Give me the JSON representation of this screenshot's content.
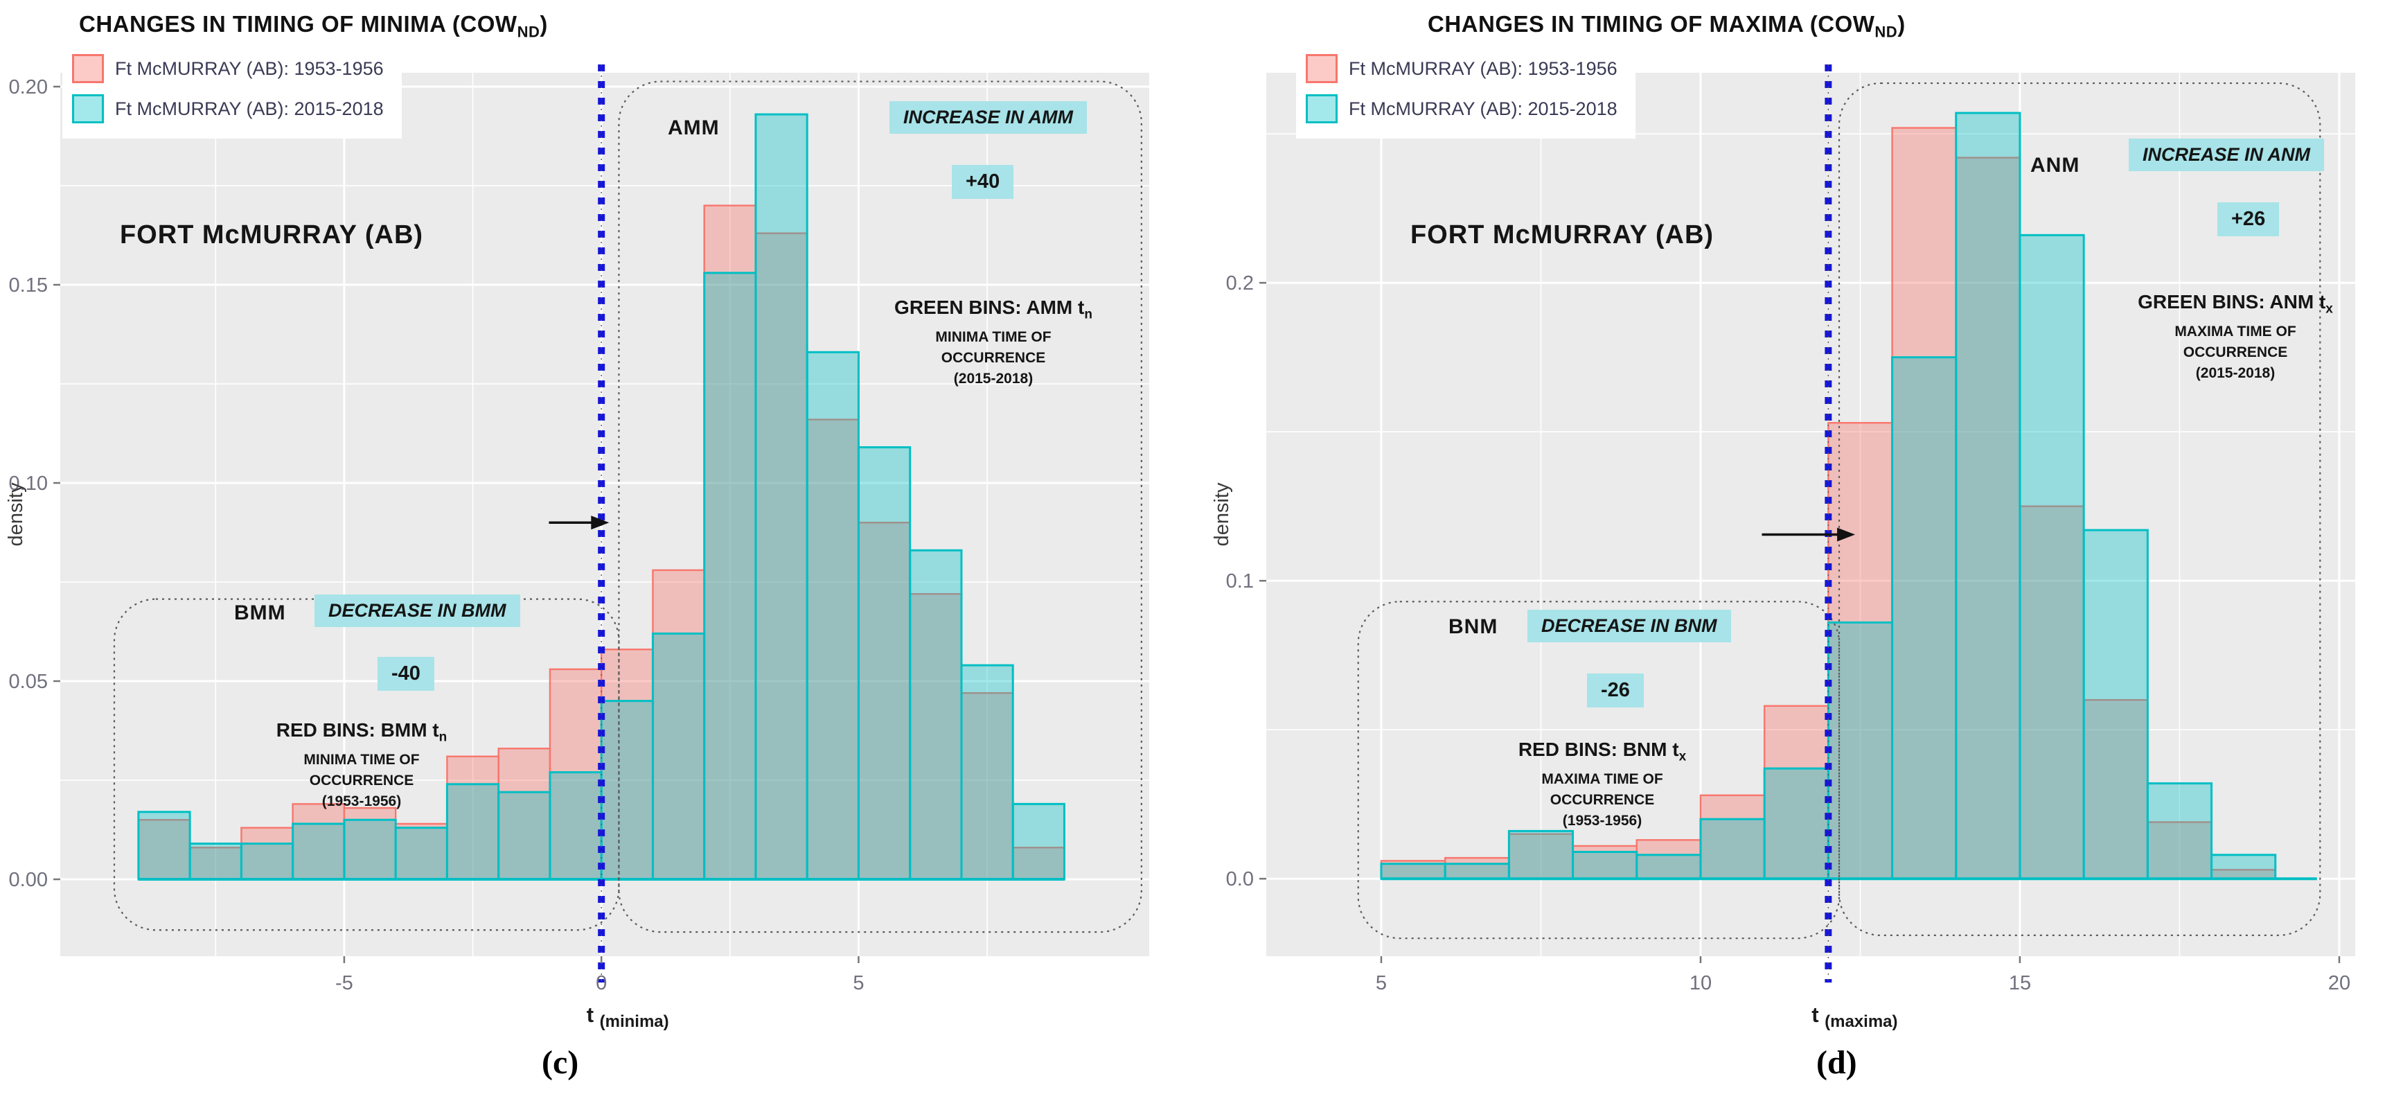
{
  "captions": {
    "c": "(c)",
    "d": "(d)"
  },
  "chart_data": [
    {
      "type": "bar",
      "id": "c",
      "title": {
        "main": "CHANGES IN TIMING OF MINIMA (COW",
        "sub": "ND",
        "close": ")"
      },
      "station_label": "FORT McMURRAY (AB)",
      "ylabel": "density",
      "xlabel": {
        "main": "t",
        "sub": "(minima)"
      },
      "xlim": [
        -10.52,
        10.65
      ],
      "ylim": [
        -0.0194,
        0.2035
      ],
      "x_ticks": [
        {
          "v": -5,
          "label": "-5"
        },
        {
          "v": 0,
          "label": "0"
        },
        {
          "v": 5,
          "label": "5"
        }
      ],
      "x_minor": [
        -7.5,
        -2.5,
        2.5,
        7.5
      ],
      "y_ticks": [
        {
          "v": 0.0,
          "label": "0.00"
        },
        {
          "v": 0.05,
          "label": "0.05"
        },
        {
          "v": 0.1,
          "label": "0.10"
        },
        {
          "v": 0.15,
          "label": "0.15"
        },
        {
          "v": 0.2,
          "label": "0.20"
        }
      ],
      "y_minor": [
        0.025,
        0.075,
        0.125,
        0.175
      ],
      "bin_width": 1,
      "bins_start": -9,
      "series": [
        {
          "name": "Ft McMURRAY (AB): 1953-1956",
          "fill": "rgba(248,118,109,0.38)",
          "stroke": "#F8766D",
          "values": [
            0.015,
            0.008,
            0.013,
            0.019,
            0.018,
            0.014,
            0.031,
            0.033,
            0.053,
            0.058,
            0.078,
            0.17,
            0.163,
            0.116,
            0.09,
            0.072,
            0.047,
            0.008
          ]
        },
        {
          "name": "Ft McMURRAY (AB): 2015-2018",
          "fill": "rgba(0,191,196,0.36)",
          "stroke": "#00BFC4",
          "values": [
            0.017,
            0.009,
            0.009,
            0.014,
            0.015,
            0.013,
            0.024,
            0.022,
            0.027,
            0.045,
            0.062,
            0.153,
            0.193,
            0.133,
            0.109,
            0.083,
            0.054,
            0.019
          ]
        }
      ],
      "ref_line_x": 0,
      "arrow": {
        "x1": -1.02,
        "x2": 0.15,
        "y": 0.09
      },
      "boxes": [
        {
          "x1": -9.47,
          "x2": 0.34,
          "d1": -0.0128,
          "d2": 0.0707
        },
        {
          "x1": 0.34,
          "x2": 10.5,
          "d1": -0.0133,
          "d2": 0.2013
        }
      ],
      "annotations": {
        "left_key": "BMM",
        "decrease_label": "DECREASE IN BMM",
        "decrease_value": "-40",
        "red_bins_label": "RED BINS: BMM t",
        "red_bins_t_sub": "n",
        "red_bins_lines": [
          "MINIMA TIME OF",
          "OCCURRENCE",
          "(1953-1956)"
        ],
        "right_key": "AMM",
        "increase_label": "INCREASE IN AMM",
        "increase_value": "+40",
        "green_bins_label": "GREEN BINS: AMM t",
        "green_bins_t_sub": "n",
        "green_bins_lines": [
          "MINIMA TIME OF",
          "OCCURRENCE",
          "(2015-2018)"
        ]
      }
    },
    {
      "type": "bar",
      "id": "d",
      "title": {
        "main": "CHANGES IN TIMING OF MAXIMA (COW",
        "sub": "ND",
        "close": ")"
      },
      "station_label": "FORT McMURRAY (AB)",
      "ylabel": "density",
      "xlabel": {
        "main": "t",
        "sub": "(maxima)"
      },
      "xlim": [
        3.2,
        20.25
      ],
      "ylim": [
        -0.026,
        0.2705
      ],
      "x_ticks": [
        {
          "v": 5,
          "label": "5"
        },
        {
          "v": 10,
          "label": "10"
        },
        {
          "v": 15,
          "label": "15"
        },
        {
          "v": 20,
          "label": "20"
        }
      ],
      "x_minor": [
        7.5,
        12.5,
        17.5
      ],
      "y_ticks": [
        {
          "v": 0.0,
          "label": "0.0"
        },
        {
          "v": 0.1,
          "label": "0.1"
        },
        {
          "v": 0.2,
          "label": "0.2"
        }
      ],
      "y_minor": [
        0.05,
        0.15,
        0.25
      ],
      "bin_width": 1,
      "bins_start": 5,
      "series": [
        {
          "name": "Ft McMURRAY (AB): 1953-1956",
          "fill": "rgba(248,118,109,0.38)",
          "stroke": "#F8766D",
          "values": [
            0.006,
            0.007,
            0.015,
            0.011,
            0.013,
            0.028,
            0.058,
            0.153,
            0.252,
            0.242,
            0.125,
            0.06,
            0.019,
            0.003
          ]
        },
        {
          "name": "Ft McMURRAY (AB): 2015-2018",
          "fill": "rgba(0,191,196,0.36)",
          "stroke": "#00BFC4",
          "values": [
            0.005,
            0.005,
            0.016,
            0.009,
            0.008,
            0.02,
            0.037,
            0.086,
            0.175,
            0.257,
            0.216,
            0.117,
            0.032,
            0.008
          ]
        }
      ],
      "ref_line_x": 12,
      "arrow": {
        "x1": 10.96,
        "x2": 12.42,
        "y": 0.1155
      },
      "boxes": [
        {
          "x1": 4.64,
          "x2": 12.17,
          "d1": -0.02,
          "d2": 0.093
        },
        {
          "x1": 12.17,
          "x2": 19.7,
          "d1": -0.019,
          "d2": 0.267
        }
      ],
      "annotations": {
        "left_key": "BNM",
        "decrease_label": "DECREASE IN BNM",
        "decrease_value": "-26",
        "red_bins_label": "RED BINS: BNM t",
        "red_bins_t_sub": "x",
        "red_bins_lines": [
          "MAXIMA TIME OF",
          "OCCURRENCE",
          "(1953-1956)"
        ],
        "right_key": "ANM",
        "increase_label": "INCREASE IN ANM",
        "increase_value": "+26",
        "green_bins_label": "GREEN BINS: ANM t",
        "green_bins_t_sub": "x",
        "green_bins_lines": [
          "MAXIMA TIME OF",
          "OCCURRENCE",
          "(2015-2018)"
        ]
      }
    }
  ]
}
